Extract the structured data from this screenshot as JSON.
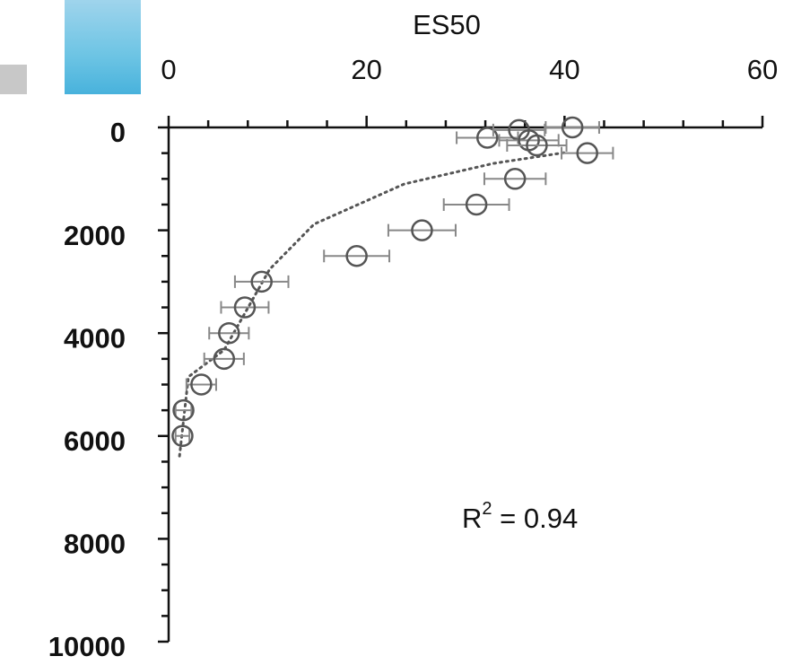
{
  "chart_data": {
    "type": "scatter",
    "x_label": "ES50",
    "x": [
      40.8,
      32.2,
      35.4,
      36.4,
      37.2,
      42.3,
      35.0,
      31.1,
      25.6,
      19.0,
      9.4,
      7.7,
      6.1,
      5.6,
      3.3,
      1.5,
      1.4
    ],
    "y": [
      0,
      200,
      50,
      250,
      350,
      500,
      1000,
      1500,
      2000,
      2500,
      3000,
      3500,
      4000,
      4500,
      5000,
      5500,
      6000
    ],
    "xerr": [
      2.7,
      3.1,
      2.6,
      3,
      3,
      2.6,
      3.1,
      3.3,
      3.4,
      3.3,
      2.7,
      2.4,
      2,
      2,
      1.5,
      0.8,
      0.7
    ],
    "color": "#555555",
    "trend": {
      "x": [
        1.1,
        2.0,
        5.6,
        10.2,
        14.7,
        23.8,
        32.8,
        40.0
      ],
      "y": [
        6390,
        4850,
        4330,
        2760,
        1880,
        1100,
        700,
        490
      ]
    },
    "xlim": [
      0,
      60
    ],
    "xticks": [
      0,
      20,
      40,
      60
    ],
    "xminorticks": [
      4,
      8,
      12,
      16,
      24,
      28,
      32,
      36,
      44,
      48,
      52,
      56
    ],
    "ylim": [
      0,
      10000
    ],
    "yticks": [
      0,
      2000,
      4000,
      6000,
      8000,
      10000
    ],
    "yminorticks": [
      500,
      1000,
      1500,
      2500,
      3000,
      3500,
      4500,
      5000,
      5500,
      6500,
      7000,
      7500,
      8500,
      9000,
      9500
    ],
    "annotation": {
      "base": "R",
      "sup": "2",
      "rest": " = 0.94"
    }
  }
}
